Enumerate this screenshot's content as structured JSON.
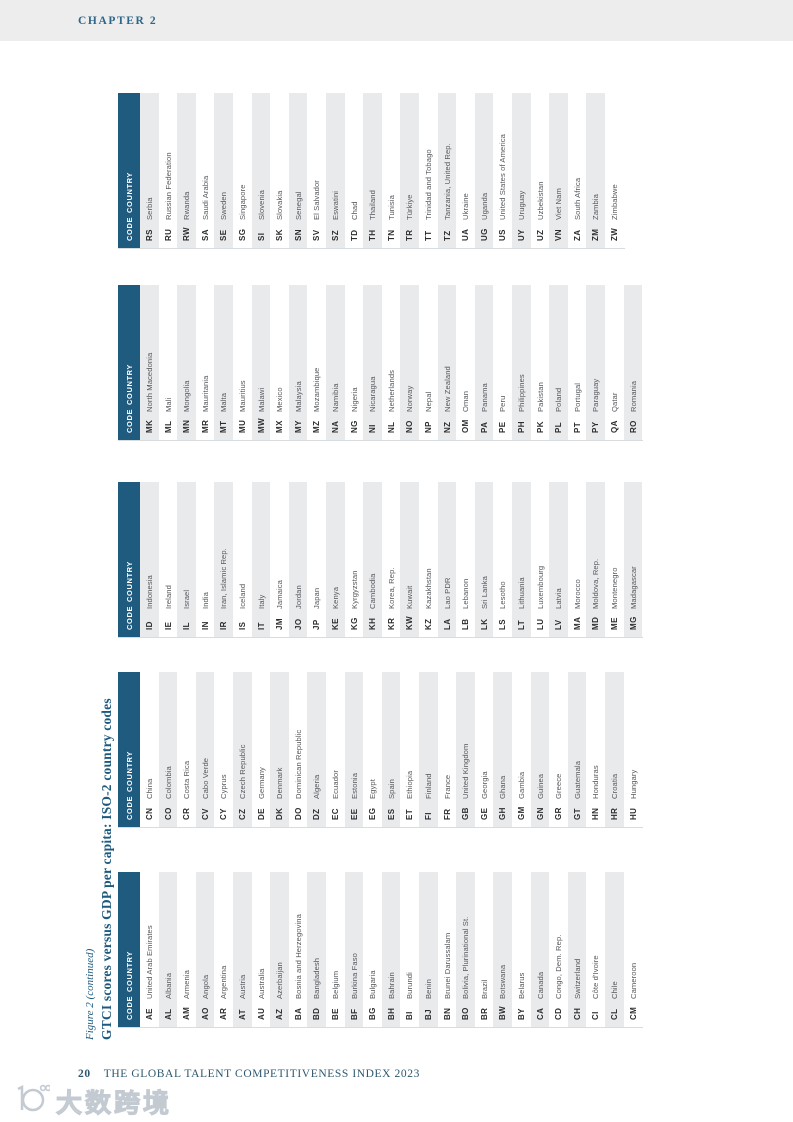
{
  "page": {
    "chapter_label": "CHAPTER 2",
    "footer": {
      "page_number": "20",
      "text": "THE GLOBAL TALENT COMPETITIVENESS INDEX 2023"
    },
    "watermark_text": "大数跨境"
  },
  "figure": {
    "caption": "Figure 2 (continued)",
    "title": "GTCI scores versus GDP per capita: ISO-2 country codes",
    "header": {
      "code": "CODE",
      "country": "COUNTRY"
    },
    "tables": [
      {
        "id": "A",
        "first_row_shaded": false,
        "rows": [
          {
            "code": "AE",
            "country": "United Arab Emirates"
          },
          {
            "code": "AL",
            "country": "Albania"
          },
          {
            "code": "AM",
            "country": "Armenia"
          },
          {
            "code": "AO",
            "country": "Angola"
          },
          {
            "code": "AR",
            "country": "Argentina"
          },
          {
            "code": "AT",
            "country": "Austria"
          },
          {
            "code": "AU",
            "country": "Australia"
          },
          {
            "code": "AZ",
            "country": "Azerbaijan"
          },
          {
            "code": "BA",
            "country": "Bosnia and Herzegovina"
          },
          {
            "code": "BD",
            "country": "Bangladesh"
          },
          {
            "code": "BE",
            "country": "Belgium"
          },
          {
            "code": "BF",
            "country": "Burkina Faso"
          },
          {
            "code": "BG",
            "country": "Bulgaria"
          },
          {
            "code": "BH",
            "country": "Bahrain"
          },
          {
            "code": "BI",
            "country": "Burundi"
          },
          {
            "code": "BJ",
            "country": "Benin"
          },
          {
            "code": "BN",
            "country": "Brunei Darussalam"
          },
          {
            "code": "BO",
            "country": "Bolivia, Plurinational St."
          },
          {
            "code": "BR",
            "country": "Brazil"
          },
          {
            "code": "BW",
            "country": "Botswana"
          },
          {
            "code": "BY",
            "country": "Belarus"
          },
          {
            "code": "CA",
            "country": "Canada"
          },
          {
            "code": "CD",
            "country": "Congo, Dem. Rep."
          },
          {
            "code": "CH",
            "country": "Switzerland"
          },
          {
            "code": "CI",
            "country": "Côte d'Ivoire"
          },
          {
            "code": "CL",
            "country": "Chile"
          },
          {
            "code": "CM",
            "country": "Cameroon"
          }
        ]
      },
      {
        "id": "B",
        "first_row_shaded": false,
        "rows": [
          {
            "code": "CN",
            "country": "China"
          },
          {
            "code": "CO",
            "country": "Colombia"
          },
          {
            "code": "CR",
            "country": "Costa Rica"
          },
          {
            "code": "CV",
            "country": "Cabo Verde"
          },
          {
            "code": "CY",
            "country": "Cyprus"
          },
          {
            "code": "CZ",
            "country": "Czech Republic"
          },
          {
            "code": "DE",
            "country": "Germany"
          },
          {
            "code": "DK",
            "country": "Denmark"
          },
          {
            "code": "DO",
            "country": "Dominican Republic"
          },
          {
            "code": "DZ",
            "country": "Algeria"
          },
          {
            "code": "EC",
            "country": "Ecuador"
          },
          {
            "code": "EE",
            "country": "Estonia"
          },
          {
            "code": "EG",
            "country": "Egypt"
          },
          {
            "code": "ES",
            "country": "Spain"
          },
          {
            "code": "ET",
            "country": "Ethiopia"
          },
          {
            "code": "FI",
            "country": "Finland"
          },
          {
            "code": "FR",
            "country": "France"
          },
          {
            "code": "GB",
            "country": "United Kingdom"
          },
          {
            "code": "GE",
            "country": "Georgia"
          },
          {
            "code": "GH",
            "country": "Ghana"
          },
          {
            "code": "GM",
            "country": "Gambia"
          },
          {
            "code": "GN",
            "country": "Guinea"
          },
          {
            "code": "GR",
            "country": "Greece"
          },
          {
            "code": "GT",
            "country": "Guatemala"
          },
          {
            "code": "HN",
            "country": "Honduras"
          },
          {
            "code": "HR",
            "country": "Croatia"
          },
          {
            "code": "HU",
            "country": "Hungary"
          }
        ]
      },
      {
        "id": "C",
        "first_row_shaded": true,
        "rows": [
          {
            "code": "ID",
            "country": "Indonesia"
          },
          {
            "code": "IE",
            "country": "Ireland"
          },
          {
            "code": "IL",
            "country": "Israel"
          },
          {
            "code": "IN",
            "country": "India"
          },
          {
            "code": "IR",
            "country": "Iran, Islamic Rep."
          },
          {
            "code": "IS",
            "country": "Iceland"
          },
          {
            "code": "IT",
            "country": "Italy"
          },
          {
            "code": "JM",
            "country": "Jamaica"
          },
          {
            "code": "JO",
            "country": "Jordan"
          },
          {
            "code": "JP",
            "country": "Japan"
          },
          {
            "code": "KE",
            "country": "Kenya"
          },
          {
            "code": "KG",
            "country": "Kyrgyzstan"
          },
          {
            "code": "KH",
            "country": "Cambodia"
          },
          {
            "code": "KR",
            "country": "Korea, Rep."
          },
          {
            "code": "KW",
            "country": "Kuwait"
          },
          {
            "code": "KZ",
            "country": "Kazakhstan"
          },
          {
            "code": "LA",
            "country": "Lao PDR"
          },
          {
            "code": "LB",
            "country": "Lebanon"
          },
          {
            "code": "LK",
            "country": "Sri Lanka"
          },
          {
            "code": "LS",
            "country": "Lesotho"
          },
          {
            "code": "LT",
            "country": "Lithuania"
          },
          {
            "code": "LU",
            "country": "Luxembourg"
          },
          {
            "code": "LV",
            "country": "Latvia"
          },
          {
            "code": "MA",
            "country": "Morocco"
          },
          {
            "code": "MD",
            "country": "Moldova, Rep."
          },
          {
            "code": "ME",
            "country": "Montenegro"
          },
          {
            "code": "MG",
            "country": "Madagascar"
          }
        ]
      },
      {
        "id": "D",
        "first_row_shaded": true,
        "rows": [
          {
            "code": "MK",
            "country": "North Macedonia"
          },
          {
            "code": "ML",
            "country": "Mali"
          },
          {
            "code": "MN",
            "country": "Mongolia"
          },
          {
            "code": "MR",
            "country": "Mauritania"
          },
          {
            "code": "MT",
            "country": "Malta"
          },
          {
            "code": "MU",
            "country": "Mauritius"
          },
          {
            "code": "MW",
            "country": "Malawi"
          },
          {
            "code": "MX",
            "country": "Mexico"
          },
          {
            "code": "MY",
            "country": "Malaysia"
          },
          {
            "code": "MZ",
            "country": "Mozambique"
          },
          {
            "code": "NA",
            "country": "Namibia"
          },
          {
            "code": "NG",
            "country": "Nigeria"
          },
          {
            "code": "NI",
            "country": "Nicaragua"
          },
          {
            "code": "NL",
            "country": "Netherlands"
          },
          {
            "code": "NO",
            "country": "Norway"
          },
          {
            "code": "NP",
            "country": "Nepal"
          },
          {
            "code": "NZ",
            "country": "New Zealand"
          },
          {
            "code": "OM",
            "country": "Oman"
          },
          {
            "code": "PA",
            "country": "Panama"
          },
          {
            "code": "PE",
            "country": "Peru"
          },
          {
            "code": "PH",
            "country": "Philippines"
          },
          {
            "code": "PK",
            "country": "Pakistan"
          },
          {
            "code": "PL",
            "country": "Poland"
          },
          {
            "code": "PT",
            "country": "Portugal"
          },
          {
            "code": "PY",
            "country": "Paraguay"
          },
          {
            "code": "QA",
            "country": "Qatar"
          },
          {
            "code": "RO",
            "country": "Romania"
          }
        ]
      },
      {
        "id": "E",
        "first_row_shaded": true,
        "rows": [
          {
            "code": "RS",
            "country": "Serbia"
          },
          {
            "code": "RU",
            "country": "Russian Federation"
          },
          {
            "code": "RW",
            "country": "Rwanda"
          },
          {
            "code": "SA",
            "country": "Saudi Arabia"
          },
          {
            "code": "SE",
            "country": "Sweden"
          },
          {
            "code": "SG",
            "country": "Singapore"
          },
          {
            "code": "SI",
            "country": "Slovenia"
          },
          {
            "code": "SK",
            "country": "Slovakia"
          },
          {
            "code": "SN",
            "country": "Senegal"
          },
          {
            "code": "SV",
            "country": "El Salvador"
          },
          {
            "code": "SZ",
            "country": "Eswatini"
          },
          {
            "code": "TD",
            "country": "Chad"
          },
          {
            "code": "TH",
            "country": "Thailand"
          },
          {
            "code": "TN",
            "country": "Tunisia"
          },
          {
            "code": "TR",
            "country": "Türkiye"
          },
          {
            "code": "TT",
            "country": "Trinidad and Tobago"
          },
          {
            "code": "TZ",
            "country": "Tanzania, United Rep."
          },
          {
            "code": "UA",
            "country": "Ukraine"
          },
          {
            "code": "UG",
            "country": "Uganda"
          },
          {
            "code": "US",
            "country": "United States of America"
          },
          {
            "code": "UY",
            "country": "Uruguay"
          },
          {
            "code": "UZ",
            "country": "Uzbekistan"
          },
          {
            "code": "VN",
            "country": "Viet Nam"
          },
          {
            "code": "ZA",
            "country": "South Africa"
          },
          {
            "code": "ZM",
            "country": "Zambia"
          },
          {
            "code": "ZW",
            "country": "Zimbabwe"
          }
        ]
      }
    ]
  },
  "colors": {
    "header_bar": "#1f5b7e",
    "stripe": "#e9eaec",
    "accent_text": "#1d5a7e"
  }
}
